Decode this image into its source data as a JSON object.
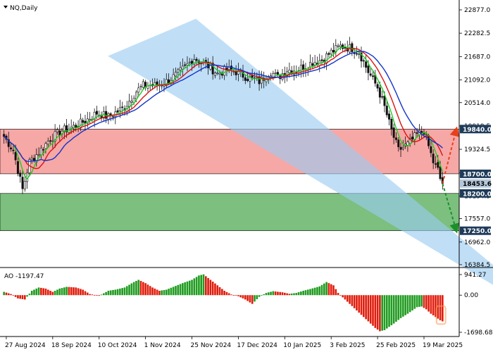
{
  "instrument": "NQ,Daily",
  "colors": {
    "bull": "#1f9b1f",
    "bear": "#e01b0b",
    "resistance_zone": "#f6a8a6",
    "support_zone": "#7cbf7e",
    "channel": "#99ccf2",
    "ma_fast": "#22cc22",
    "ma_mid": "#dd1111",
    "ma_slow": "#1133cc",
    "level_label_bg": "#1f3b5a",
    "level_label_text": "#ffffff",
    "price_label_bg": "#b4c7d8"
  },
  "chart_data": [
    {
      "type": "candlestick",
      "title": "NQ,Daily",
      "y_range": [
        16384.5,
        22877.0
      ],
      "y_ticks": [
        "22877.0",
        "22282.5",
        "21687.0",
        "21092.0",
        "20514.0",
        "19919.5",
        "19324.5",
        "18729.5",
        "18134.5",
        "17557.0",
        "16962.0",
        "16384.5"
      ],
      "x_labels": [
        "27 Aug 2024",
        "18 Sep 2024",
        "10 Oct 2024",
        "1 Nov 2024",
        "25 Nov 2024",
        "17 Dec 2024",
        "10 Jan 2025",
        "3 Feb 2025",
        "25 Feb 2025",
        "19 Mar 2025"
      ],
      "close_anchors": [
        [
          0,
          19650
        ],
        [
          4,
          19300
        ],
        [
          8,
          18300
        ],
        [
          11,
          19000
        ],
        [
          15,
          19250
        ],
        [
          20,
          19600
        ],
        [
          25,
          19800
        ],
        [
          30,
          19900
        ],
        [
          35,
          20050
        ],
        [
          40,
          20250
        ],
        [
          45,
          20150
        ],
        [
          52,
          20400
        ],
        [
          57,
          20800
        ],
        [
          60,
          20950
        ],
        [
          65,
          20950
        ],
        [
          70,
          21050
        ],
        [
          75,
          21250
        ],
        [
          82,
          21650
        ],
        [
          88,
          21450
        ],
        [
          92,
          21250
        ],
        [
          96,
          21350
        ],
        [
          100,
          21300
        ],
        [
          105,
          21150
        ],
        [
          110,
          21050
        ],
        [
          115,
          21300
        ],
        [
          118,
          21150
        ],
        [
          122,
          21350
        ],
        [
          126,
          21350
        ],
        [
          130,
          21450
        ],
        [
          133,
          21550
        ],
        [
          137,
          21600
        ],
        [
          141,
          21800
        ],
        [
          145,
          21950
        ],
        [
          150,
          21900
        ],
        [
          153,
          21800
        ],
        [
          157,
          21300
        ],
        [
          161,
          20900
        ],
        [
          164,
          20400
        ],
        [
          167,
          19800
        ],
        [
          170,
          19300
        ],
        [
          174,
          19450
        ],
        [
          178,
          19700
        ],
        [
          181,
          19800
        ],
        [
          183,
          19400
        ],
        [
          185,
          19000
        ],
        [
          187,
          18800
        ],
        [
          189,
          18350
        ]
      ],
      "levels": [
        {
          "label": "19840.0",
          "price": 19840.0,
          "kind": "resistance-top"
        },
        {
          "label": "18700.0",
          "price": 18700.0,
          "kind": "resistance-bottom"
        },
        {
          "label": "18453.6",
          "price": 18453.6,
          "kind": "last-price"
        },
        {
          "label": "18200.0",
          "price": 18200.0,
          "kind": "support-top"
        },
        {
          "label": "17250.0",
          "price": 17250.0,
          "kind": "support-bottom"
        }
      ],
      "channel": {
        "upper_start": [
          0.35,
          22650
        ],
        "upper_end": [
          0.685,
          16350
        ],
        "lower_start": [
          0.25,
          21700
        ],
        "lower_end": [
          0.685,
          15850
        ]
      },
      "forecast": [
        {
          "direction": "up",
          "from": 18453.6,
          "to": 19840.0,
          "color": "red"
        },
        {
          "direction": "down",
          "from": 18453.6,
          "to": 17250.0,
          "color": "green"
        }
      ]
    },
    {
      "type": "histogram",
      "title": "AO -1197.47",
      "name": "AO",
      "last_value": -1197.47,
      "y_range": [
        -1698.68,
        941.27
      ],
      "y_ticks": [
        "941.27",
        "0.00",
        "-1698.68"
      ],
      "anchors": [
        [
          0,
          150
        ],
        [
          3,
          50
        ],
        [
          6,
          -150
        ],
        [
          9,
          -200
        ],
        [
          12,
          200
        ],
        [
          15,
          350
        ],
        [
          18,
          300
        ],
        [
          21,
          150
        ],
        [
          24,
          300
        ],
        [
          27,
          380
        ],
        [
          31,
          350
        ],
        [
          34,
          250
        ],
        [
          37,
          50
        ],
        [
          41,
          -30
        ],
        [
          45,
          200
        ],
        [
          48,
          250
        ],
        [
          52,
          350
        ],
        [
          56,
          600
        ],
        [
          58,
          700
        ],
        [
          61,
          550
        ],
        [
          64,
          350
        ],
        [
          67,
          200
        ],
        [
          70,
          250
        ],
        [
          73,
          380
        ],
        [
          77,
          550
        ],
        [
          81,
          700
        ],
        [
          84,
          900
        ],
        [
          86,
          950
        ],
        [
          89,
          700
        ],
        [
          92,
          450
        ],
        [
          95,
          200
        ],
        [
          98,
          30
        ],
        [
          101,
          -50
        ],
        [
          104,
          -200
        ],
        [
          107,
          -400
        ],
        [
          110,
          -80
        ],
        [
          113,
          100
        ],
        [
          116,
          180
        ],
        [
          120,
          130
        ],
        [
          123,
          60
        ],
        [
          126,
          100
        ],
        [
          129,
          200
        ],
        [
          132,
          280
        ],
        [
          136,
          400
        ],
        [
          139,
          600
        ],
        [
          142,
          450
        ],
        [
          144,
          100
        ],
        [
          147,
          -200
        ],
        [
          150,
          -500
        ],
        [
          153,
          -800
        ],
        [
          156,
          -1100
        ],
        [
          158,
          -1300
        ],
        [
          160,
          -1500
        ],
        [
          162,
          -1650
        ],
        [
          164,
          -1600
        ],
        [
          166,
          -1450
        ],
        [
          168,
          -1300
        ],
        [
          171,
          -1050
        ],
        [
          174,
          -850
        ],
        [
          176,
          -700
        ],
        [
          178,
          -550
        ],
        [
          180,
          -520
        ],
        [
          182,
          -650
        ],
        [
          184,
          -850
        ],
        [
          186,
          -1000
        ],
        [
          188,
          -1150
        ],
        [
          189,
          -1197
        ]
      ]
    }
  ]
}
